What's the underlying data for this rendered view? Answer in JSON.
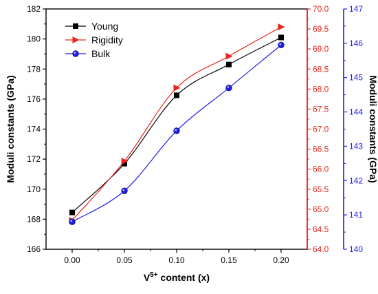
{
  "chart_data": {
    "type": "line",
    "x": [
      0.0,
      0.05,
      0.1,
      0.15,
      0.2
    ],
    "x_tick_labels": [
      "0.00",
      "0.05",
      "0.10",
      "0.15",
      "0.20"
    ],
    "xlim": [
      -0.025,
      0.225
    ],
    "xlabel_main": "V",
    "xlabel_sup": "5+",
    "xlabel_rest": " content (x)",
    "ylabel_left": "Moduli constants (GPa)",
    "ylabel_right": "Moduli constants (GPa)",
    "axes": {
      "left": {
        "range": [
          166,
          182
        ],
        "ticks": [
          "166",
          "168",
          "170",
          "172",
          "174",
          "176",
          "178",
          "180",
          "182"
        ],
        "color": "#000000"
      },
      "right_red": {
        "range": [
          64.0,
          70.0
        ],
        "ticks": [
          "64.0",
          "64.5",
          "65.0",
          "65.5",
          "66.0",
          "66.5",
          "67.0",
          "67.5",
          "68.0",
          "68.5",
          "69.0",
          "69.5",
          "70.0"
        ],
        "color": "#e8261c"
      },
      "right_blue": {
        "range": [
          140,
          147
        ],
        "ticks": [
          "140",
          "141",
          "142",
          "143",
          "144",
          "145",
          "146",
          "147"
        ],
        "color": "#1f1fe0"
      }
    },
    "series": [
      {
        "name": "Young",
        "axis": "left",
        "marker": "square",
        "color": "#000000",
        "values": [
          168.45,
          171.7,
          176.25,
          178.3,
          180.1
        ]
      },
      {
        "name": "Rigidity",
        "axis": "right_red",
        "marker": "triangle-right",
        "color": "#e8261c",
        "values": [
          64.72,
          66.2,
          68.03,
          68.82,
          69.55
        ]
      },
      {
        "name": "Bulk",
        "axis": "right_blue",
        "marker": "circle",
        "color": "#1f1fe0",
        "values": [
          140.8,
          141.7,
          143.45,
          144.7,
          145.95
        ]
      }
    ],
    "legend_position": "top-left",
    "grid": false
  }
}
